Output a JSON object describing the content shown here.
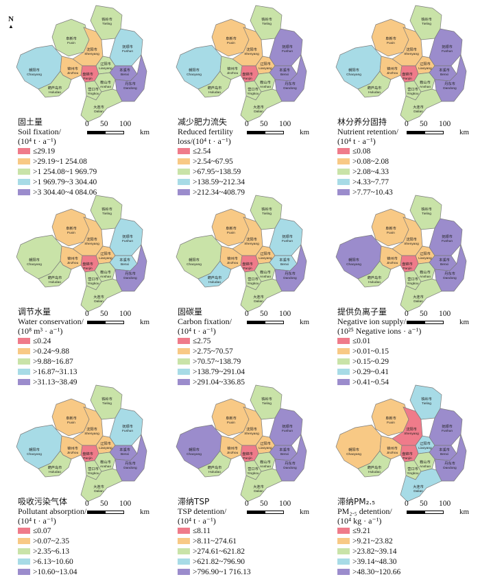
{
  "colors": {
    "c1": "#ef7b8a",
    "c2": "#f8c985",
    "c3": "#c9e3a8",
    "c4": "#a7dbe6",
    "c5": "#9b8ccc"
  },
  "cities": [
    {
      "zh": "铁岭市",
      "en": "Tieling"
    },
    {
      "zh": "阜新市",
      "en": "Fuxin"
    },
    {
      "zh": "沈阳市",
      "en": "Shenyang"
    },
    {
      "zh": "抚顺市",
      "en": "Fushun"
    },
    {
      "zh": "朝阳市",
      "en": "Chaoyang"
    },
    {
      "zh": "锦州市",
      "en": "Jinzhou"
    },
    {
      "zh": "辽阳市",
      "en": "Liaoyang"
    },
    {
      "zh": "本溪市",
      "en": "Benxi"
    },
    {
      "zh": "盘锦市",
      "en": "Panjin"
    },
    {
      "zh": "鞍山市",
      "en": "Anshan"
    },
    {
      "zh": "丹东市",
      "en": "Dandong"
    },
    {
      "zh": "营口市",
      "en": "Yingkou"
    },
    {
      "zh": "葫芦岛市",
      "en": "Huludao"
    },
    {
      "zh": "大连市",
      "en": "Dalian"
    }
  ],
  "north_label": "N",
  "scale": {
    "ticks": [
      "0",
      "50",
      "100"
    ],
    "unit": "km"
  },
  "panels": [
    {
      "zh": "固土量",
      "title": [
        "Soil fixation/",
        "(10⁴ t · a⁻¹)"
      ],
      "legend": [
        "≤29.19",
        ">29.19~1 254.08",
        ">1 254.08~1 969.79",
        ">1 969.79~3 304.40",
        ">3 304.40~4 084.06"
      ],
      "classes": [
        3,
        3,
        2,
        4,
        4,
        2,
        3,
        5,
        1,
        3,
        5,
        3,
        3,
        3
      ]
    },
    {
      "zh": "减少肥力流失",
      "title": [
        "Reduced fertility",
        "loss/(10⁴ t · a⁻¹)"
      ],
      "legend": [
        "≤2.54",
        ">2.54~67.95",
        ">67.95~138.59",
        ">138.59~212.34",
        ">212.34~408.79"
      ],
      "classes": [
        3,
        2,
        2,
        5,
        4,
        3,
        2,
        5,
        1,
        3,
        5,
        3,
        3,
        3
      ]
    },
    {
      "zh": "林分养分固持",
      "title": [
        "Nutrient retention/",
        "(10⁴ t · a⁻¹)"
      ],
      "legend": [
        "≤0.08",
        ">0.08~2.08",
        ">2.08~4.33",
        ">4.33~7.77",
        ">7.77~10.43"
      ],
      "classes": [
        3,
        2,
        2,
        5,
        4,
        2,
        2,
        5,
        1,
        3,
        5,
        3,
        3,
        3
      ]
    },
    {
      "zh": "调节水量",
      "title": [
        "Water conservation/",
        "(10⁸ m³ · a⁻¹)"
      ],
      "legend": [
        "≤0.24",
        ">0.24~9.88",
        ">9.88~16.87",
        ">16.87~31.13",
        ">31.13~38.49"
      ],
      "classes": [
        3,
        2,
        2,
        4,
        3,
        2,
        2,
        4,
        1,
        3,
        5,
        3,
        3,
        3
      ]
    },
    {
      "zh": "固碳量",
      "title": [
        "Carbon fixation/",
        "(10⁴ t · a⁻¹)"
      ],
      "legend": [
        "≤2.75",
        ">2.75~70.57",
        ">70.57~138.79",
        ">138.79~291.04",
        ">291.04~336.85"
      ],
      "classes": [
        3,
        2,
        2,
        4,
        3,
        2,
        2,
        4,
        1,
        3,
        5,
        3,
        4,
        3
      ]
    },
    {
      "zh": "提供负离子量",
      "title": [
        "Negative ion supply/",
        "(10²⁵ Negative ions · a⁻¹)"
      ],
      "legend": [
        "≤0.01",
        ">0.01~0.15",
        ">0.15~0.29",
        ">0.29~0.41",
        ">0.41~0.54"
      ],
      "classes": [
        3,
        2,
        2,
        5,
        5,
        2,
        2,
        5,
        1,
        3,
        5,
        3,
        3,
        3
      ]
    },
    {
      "zh": "吸收污染气体",
      "title": [
        "Pollutant absorption/",
        "(10⁴ t · a⁻¹)"
      ],
      "legend": [
        "≤0.07",
        ">0.07~2.35",
        ">2.35~6.13",
        ">6.13~10.60",
        ">10.60~13.04"
      ],
      "classes": [
        3,
        2,
        2,
        4,
        4,
        2,
        2,
        5,
        1,
        3,
        5,
        3,
        3,
        3
      ]
    },
    {
      "zh": "滞纳TSP",
      "title": [
        "TSP detention/",
        "(10⁴ t · a⁻¹)"
      ],
      "legend": [
        "≤8.11",
        ">8.11~274.61",
        ">274.61~621.82",
        ">621.82~796.90",
        ">796.90~1 716.13"
      ],
      "classes": [
        3,
        2,
        2,
        5,
        5,
        2,
        2,
        5,
        1,
        3,
        5,
        3,
        3,
        3
      ]
    },
    {
      "zh": "滞纳PM₂.₅",
      "title": [
        "PM₂.₅ detention/",
        "(10⁴ kg · a⁻¹)"
      ],
      "legend": [
        "≤9.21",
        ">9.21~23.82",
        ">23.82~39.14",
        ">39.14~48.30",
        ">48.30~120.66"
      ],
      "classes": [
        4,
        2,
        1,
        5,
        2,
        2,
        4,
        5,
        1,
        3,
        5,
        3,
        3,
        4
      ]
    }
  ]
}
